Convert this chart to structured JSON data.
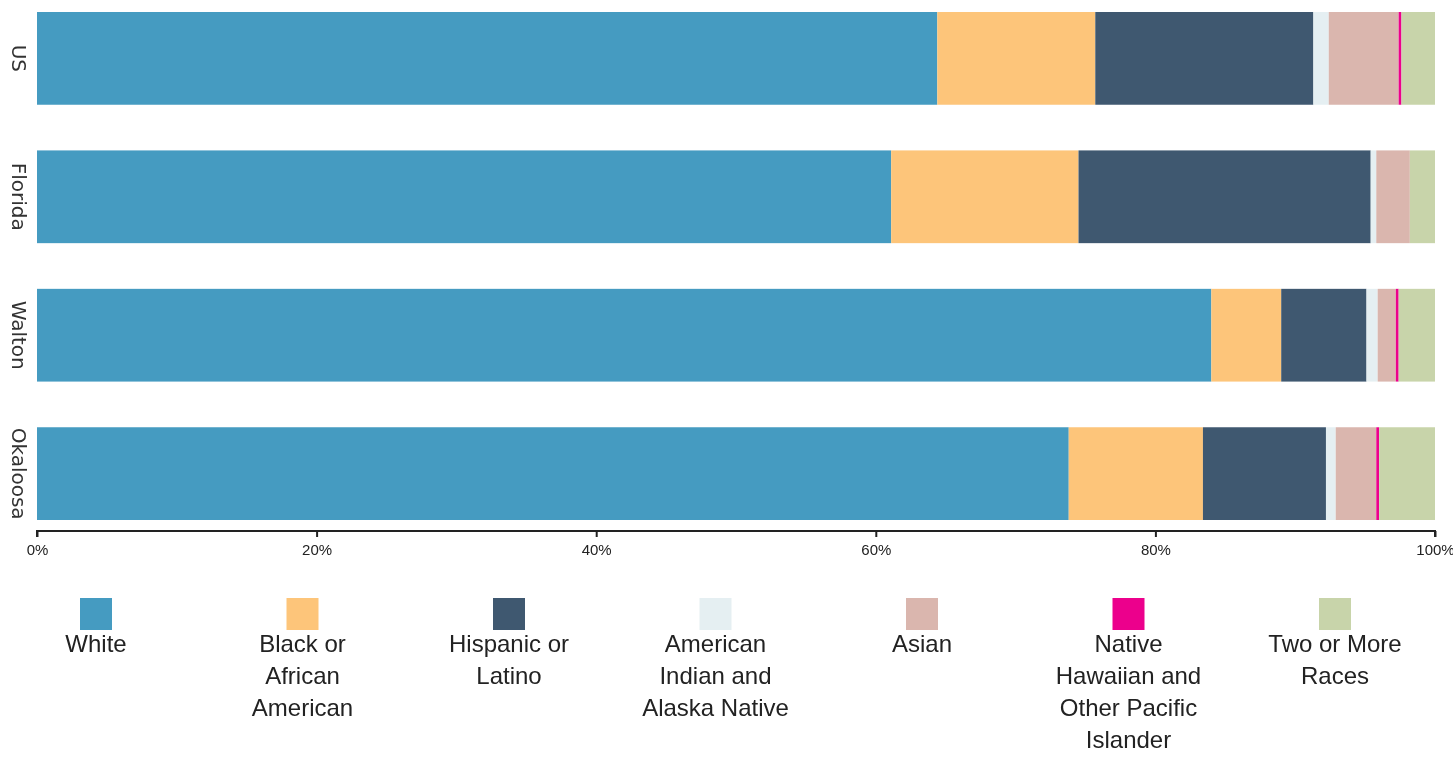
{
  "chart_data": {
    "type": "bar",
    "orientation": "horizontal",
    "stacked": true,
    "categories": [
      "US",
      "Florida",
      "Walton",
      "Okaloosa"
    ],
    "series": [
      {
        "name": "White",
        "color": "#459bc1",
        "values": [
          64.4,
          61.1,
          84.0,
          73.8
        ]
      },
      {
        "name": "Black or African American",
        "color": "#fdc57a",
        "values": [
          11.3,
          13.4,
          5.0,
          9.6
        ]
      },
      {
        "name": "Hispanic or Latino",
        "color": "#3f5870",
        "values": [
          15.6,
          20.9,
          6.1,
          8.8
        ]
      },
      {
        "name": "American Indian and Alaska Native",
        "color": "#e5eff2",
        "values": [
          1.1,
          0.4,
          0.8,
          0.7
        ]
      },
      {
        "name": "Asian",
        "color": "#dab6ae",
        "values": [
          5.0,
          2.4,
          1.3,
          2.9
        ]
      },
      {
        "name": "Native Hawaiian and Other Pacific Islander",
        "color": "#ec008c",
        "values": [
          0.2,
          0,
          0.2,
          0.2
        ]
      },
      {
        "name": "Two or More Races",
        "color": "#c8d4aa",
        "values": [
          2.4,
          1.8,
          2.6,
          4.0
        ]
      }
    ],
    "xlim": [
      0,
      100
    ],
    "xticks": [
      {
        "value": 0,
        "label": "0%"
      },
      {
        "value": 20,
        "label": "20%"
      },
      {
        "value": 40,
        "label": "40%"
      },
      {
        "value": 60,
        "label": "60%"
      },
      {
        "value": 80,
        "label": "80%"
      },
      {
        "value": 100,
        "label": "100%"
      }
    ],
    "legend": "bottom"
  }
}
